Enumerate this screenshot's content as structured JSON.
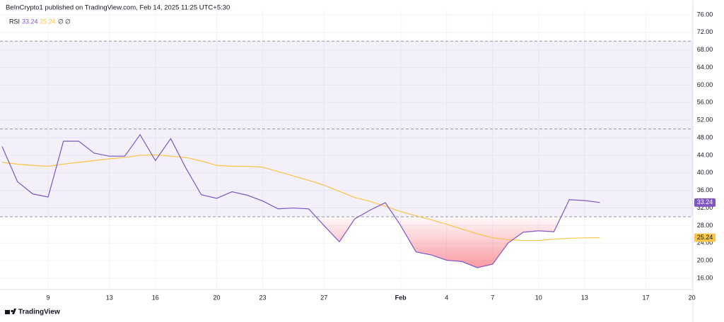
{
  "chart_data": {
    "type": "line",
    "title": "BeInCrypto1 published on TradingView.com, Feb 14, 2025 11:25 UTC+5:30",
    "indicator": "RSI",
    "legend_extra": [
      "∅",
      "∅"
    ],
    "footer": "TradingView",
    "categories": [
      null,
      null,
      null,
      "9",
      null,
      null,
      null,
      "13",
      null,
      null,
      "16",
      null,
      null,
      null,
      "20",
      null,
      null,
      "23",
      null,
      null,
      null,
      "27",
      null,
      null,
      null,
      null,
      "Feb",
      null,
      null,
      "4",
      null,
      null,
      "7",
      null,
      null,
      "10",
      null,
      null,
      "13",
      null,
      null,
      null,
      "17",
      null,
      null,
      "20"
    ],
    "series": [
      {
        "color": "#7e57c2",
        "values": [
          46,
          38,
          35.2,
          34.5,
          47.2,
          47.2,
          44.5,
          43.8,
          43.8,
          48.7,
          42.8,
          47.8,
          41,
          35,
          34.2,
          35.7,
          34.9,
          33.6,
          31.8,
          32,
          31.8,
          28,
          24.3,
          29.5,
          31.5,
          33.2,
          28,
          22,
          21.3,
          20.1,
          19.8,
          18.4,
          19.2,
          24,
          26.5,
          26.8,
          26.6,
          33.9,
          33.7,
          33.24,
          null,
          null,
          null,
          null,
          null,
          null
        ],
        "value_labels": [
          null,
          null,
          null,
          null,
          null,
          null,
          null,
          null,
          null,
          null,
          null,
          null,
          null,
          null,
          null,
          null,
          null,
          null,
          null,
          null,
          null,
          null,
          null,
          null,
          null,
          null,
          null,
          null,
          null,
          null,
          null,
          null,
          null,
          null,
          null,
          null,
          null,
          null,
          null,
          "33.24",
          null,
          null,
          null,
          null,
          null,
          null
        ]
      },
      {
        "color": "#f7c548",
        "values": [
          42.4,
          42,
          41.7,
          41.5,
          42,
          42.4,
          42.8,
          43.2,
          43.5,
          44,
          44.1,
          43.8,
          43.5,
          42.7,
          41.7,
          41.5,
          41.5,
          41.3,
          40.3,
          39.3,
          38.3,
          37.2,
          35.8,
          34.4,
          33.5,
          32.4,
          31.2,
          30.2,
          29.3,
          28.3,
          27.2,
          26.1,
          25.2,
          24.8,
          24.6,
          24.6,
          24.9,
          25.1,
          25.2,
          25.24,
          null,
          null,
          null,
          null,
          null,
          null
        ],
        "value_labels": [
          null,
          null,
          null,
          null,
          null,
          null,
          null,
          null,
          null,
          null,
          null,
          null,
          null,
          null,
          null,
          null,
          null,
          null,
          null,
          null,
          null,
          null,
          null,
          null,
          null,
          null,
          null,
          null,
          null,
          null,
          null,
          null,
          null,
          null,
          null,
          null,
          null,
          null,
          null,
          "25.24",
          null,
          null,
          null,
          null,
          null,
          null
        ]
      }
    ],
    "levels": [
      70,
      50,
      30
    ],
    "band_color": "#7e57c2",
    "oversold_fill_color": "#f23645",
    "ylim": [
      13.43,
      77.12
    ],
    "yticks": [
      {
        "value": 16,
        "label": "16.00"
      },
      {
        "value": 20,
        "label": "20.00"
      },
      {
        "value": 24,
        "label": "24.00"
      },
      {
        "value": 28,
        "label": "28.00"
      },
      {
        "value": 32,
        "label": "32.00"
      },
      {
        "value": 36,
        "label": "36.00"
      },
      {
        "value": 40,
        "label": "40.00"
      },
      {
        "value": 44,
        "label": "44.00"
      },
      {
        "value": 48,
        "label": "48.00"
      },
      {
        "value": 52,
        "label": "52.00"
      },
      {
        "value": 56,
        "label": "56.00"
      },
      {
        "value": 60,
        "label": "60.00"
      },
      {
        "value": 64,
        "label": "64.00"
      },
      {
        "value": 68,
        "label": "68.00"
      },
      {
        "value": 72,
        "label": "72.00"
      },
      {
        "value": 76,
        "label": "76.00"
      }
    ],
    "grid": true
  }
}
